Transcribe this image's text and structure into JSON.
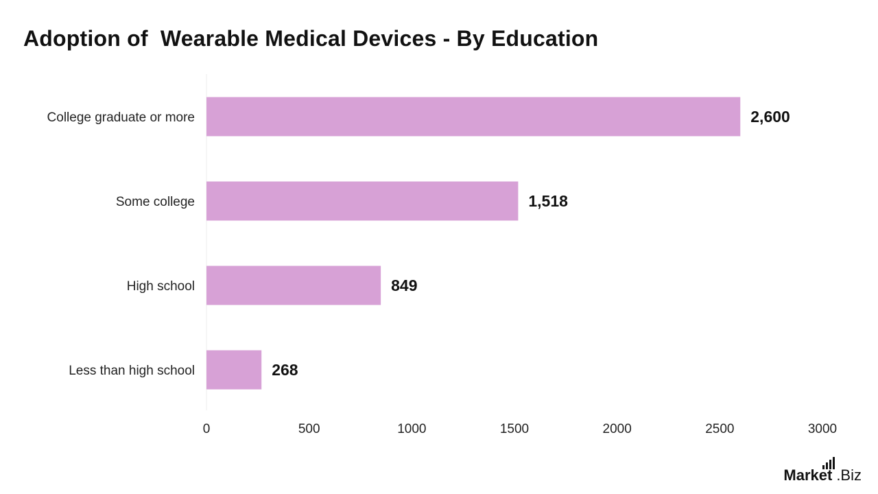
{
  "chart_data": {
    "type": "bar",
    "orientation": "horizontal",
    "title": "Adoption of  Wearable Medical Devices - By Education",
    "categories": [
      "College graduate or more",
      "Some college",
      "High school",
      "Less than high school"
    ],
    "values": [
      2600,
      1518,
      849,
      268
    ],
    "data_labels": [
      "2,600",
      "1,518",
      "849",
      "268"
    ],
    "xlim": [
      0,
      3000
    ],
    "xticks": [
      "0",
      "500",
      "1000",
      "1500",
      "2000",
      "2500",
      "3000"
    ],
    "xlabel": "",
    "ylabel": "",
    "grid": false,
    "bar_color": "#d7a1d6"
  },
  "branding": {
    "part1": "Market",
    "part2": ".Biz"
  }
}
